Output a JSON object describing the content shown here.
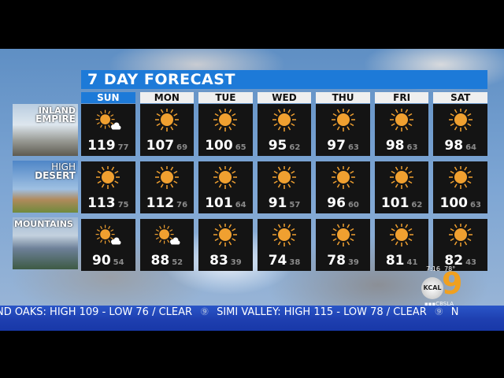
{
  "title": "7 DAY FORECAST",
  "days": [
    "SUN",
    "MON",
    "TUE",
    "WED",
    "THU",
    "FRI",
    "SAT"
  ],
  "active_day": "SUN",
  "regions": [
    {
      "label_line1": "INLAND",
      "label_line2": "EMPIRE",
      "forecast": [
        {
          "icon": "sun-cloud-icon",
          "high": "119",
          "low": "77"
        },
        {
          "icon": "sun-icon",
          "high": "107",
          "low": "69"
        },
        {
          "icon": "sun-icon",
          "high": "100",
          "low": "65"
        },
        {
          "icon": "sun-icon",
          "high": "95",
          "low": "62"
        },
        {
          "icon": "sun-icon",
          "high": "97",
          "low": "63"
        },
        {
          "icon": "sun-icon",
          "high": "98",
          "low": "63"
        },
        {
          "icon": "sun-icon",
          "high": "98",
          "low": "64"
        }
      ]
    },
    {
      "label_line1": "HIGH",
      "label_line2": "DESERT",
      "forecast": [
        {
          "icon": "sun-icon",
          "high": "113",
          "low": "75"
        },
        {
          "icon": "sun-icon",
          "high": "112",
          "low": "76"
        },
        {
          "icon": "sun-icon",
          "high": "101",
          "low": "64"
        },
        {
          "icon": "sun-icon",
          "high": "91",
          "low": "57"
        },
        {
          "icon": "sun-icon",
          "high": "96",
          "low": "60"
        },
        {
          "icon": "sun-icon",
          "high": "101",
          "low": "62"
        },
        {
          "icon": "sun-icon",
          "high": "100",
          "low": "63"
        }
      ]
    },
    {
      "label_line1": "MOUNTAINS",
      "label_line2": "",
      "forecast": [
        {
          "icon": "sun-cloud-icon",
          "high": "90",
          "low": "54"
        },
        {
          "icon": "sun-cloud-icon",
          "high": "88",
          "low": "52"
        },
        {
          "icon": "sun-icon",
          "high": "83",
          "low": "39"
        },
        {
          "icon": "sun-icon",
          "high": "74",
          "low": "38"
        },
        {
          "icon": "sun-icon",
          "high": "78",
          "low": "39"
        },
        {
          "icon": "sun-icon",
          "high": "81",
          "low": "41"
        },
        {
          "icon": "sun-icon",
          "high": "82",
          "low": "43"
        }
      ]
    }
  ],
  "logo": {
    "time": "7:16",
    "temp": "78°",
    "kcal": "KCAL",
    "channel": "9",
    "social": "CBSLA"
  },
  "ticker": {
    "items": [
      "ND OAKS: HIGH 109 - LOW 76 / CLEAR",
      "SIMI VALLEY: HIGH 115 - LOW 78 / CLEAR",
      "N"
    ],
    "separator": "⑨"
  },
  "colors": {
    "accent": "#1d7ad8",
    "sun": "#f0a030",
    "ticker": "#2a56c8"
  }
}
